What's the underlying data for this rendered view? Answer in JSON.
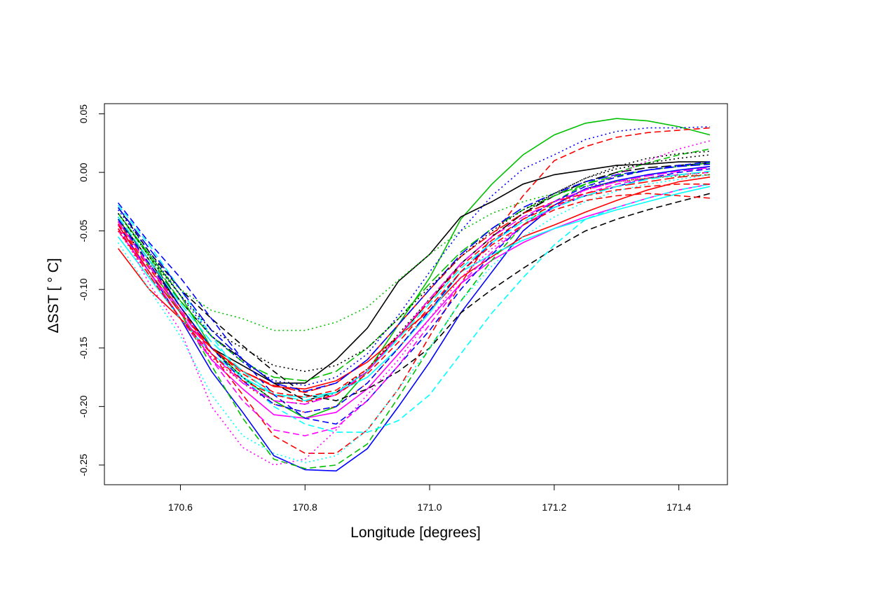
{
  "chart_data": {
    "type": "line",
    "xlabel": "Longitude [degrees]",
    "ylabel": "ΔSST [ ° C]",
    "xlim": [
      170.478,
      171.478
    ],
    "ylim": [
      -0.2668,
      0.0587
    ],
    "x_ticks": [
      170.6,
      170.8,
      171.0,
      171.2,
      171.4
    ],
    "x_tick_labels": [
      "170.6",
      "170.8",
      "171.0",
      "171.2",
      "171.4"
    ],
    "y_ticks": [
      0.05,
      0.0,
      -0.05,
      -0.1,
      -0.15,
      -0.2,
      -0.25
    ],
    "y_tick_labels": [
      "0.05",
      "0.00",
      "-0.05",
      "-0.10",
      "-0.15",
      "-0.20",
      "-0.25"
    ],
    "grid": false,
    "legend": "none",
    "x": [
      170.5,
      170.55,
      170.6,
      170.65,
      170.7,
      170.75,
      170.8,
      170.85,
      170.9,
      170.95,
      171.0,
      171.05,
      171.1,
      171.15,
      171.2,
      171.25,
      171.3,
      171.35,
      171.4,
      171.45
    ],
    "series": [
      {
        "color": "#00c000",
        "dash": "solid",
        "values": [
          -0.035,
          -0.07,
          -0.105,
          -0.15,
          -0.175,
          -0.195,
          -0.21,
          -0.2,
          -0.17,
          -0.13,
          -0.09,
          -0.04,
          -0.01,
          0.015,
          0.032,
          0.042,
          0.046,
          0.044,
          0.039,
          0.032
        ]
      },
      {
        "color": "#0000ff",
        "dash": "solid",
        "values": [
          -0.045,
          -0.085,
          -0.125,
          -0.17,
          -0.205,
          -0.242,
          -0.254,
          -0.255,
          -0.236,
          -0.2,
          -0.162,
          -0.12,
          -0.085,
          -0.05,
          -0.028,
          -0.014,
          -0.007,
          -0.002,
          0.002,
          0.005
        ]
      },
      {
        "color": "#000000",
        "dash": "solid",
        "values": [
          -0.04,
          -0.075,
          -0.115,
          -0.15,
          -0.165,
          -0.18,
          -0.18,
          -0.16,
          -0.133,
          -0.093,
          -0.07,
          -0.038,
          -0.025,
          -0.01,
          -0.002,
          0.002,
          0.006,
          0.007,
          0.009,
          0.009
        ]
      },
      {
        "color": "#ff0000",
        "dash": "solid",
        "values": [
          -0.065,
          -0.1,
          -0.125,
          -0.15,
          -0.17,
          -0.183,
          -0.185,
          -0.178,
          -0.162,
          -0.14,
          -0.118,
          -0.09,
          -0.072,
          -0.055,
          -0.045,
          -0.034,
          -0.024,
          -0.015,
          -0.008,
          -0.004
        ]
      },
      {
        "color": "#ff00ff",
        "dash": "solid",
        "values": [
          -0.05,
          -0.085,
          -0.12,
          -0.16,
          -0.185,
          -0.207,
          -0.21,
          -0.205,
          -0.185,
          -0.155,
          -0.125,
          -0.095,
          -0.075,
          -0.06,
          -0.048,
          -0.038,
          -0.03,
          -0.022,
          -0.015,
          -0.01
        ]
      },
      {
        "color": "#00ffff",
        "dash": "solid",
        "values": [
          -0.055,
          -0.09,
          -0.125,
          -0.155,
          -0.175,
          -0.19,
          -0.192,
          -0.188,
          -0.175,
          -0.15,
          -0.12,
          -0.085,
          -0.07,
          -0.058,
          -0.048,
          -0.04,
          -0.032,
          -0.025,
          -0.018,
          -0.012
        ]
      },
      {
        "color": "#000000",
        "dash": "dash",
        "values": [
          -0.03,
          -0.068,
          -0.1,
          -0.125,
          -0.148,
          -0.17,
          -0.19,
          -0.195,
          -0.185,
          -0.17,
          -0.15,
          -0.12,
          -0.1,
          -0.082,
          -0.065,
          -0.05,
          -0.04,
          -0.032,
          -0.025,
          -0.018
        ]
      },
      {
        "color": "#ff0000",
        "dash": "dash",
        "values": [
          -0.042,
          -0.08,
          -0.115,
          -0.155,
          -0.19,
          -0.225,
          -0.24,
          -0.24,
          -0.22,
          -0.185,
          -0.14,
          -0.095,
          -0.055,
          -0.02,
          0.01,
          0.022,
          0.03,
          0.034,
          0.036,
          0.038
        ]
      },
      {
        "color": "#00c000",
        "dash": "dash",
        "values": [
          -0.04,
          -0.08,
          -0.12,
          -0.165,
          -0.21,
          -0.245,
          -0.253,
          -0.25,
          -0.232,
          -0.192,
          -0.15,
          -0.11,
          -0.075,
          -0.045,
          -0.025,
          -0.01,
          0.0,
          0.008,
          0.015,
          0.02
        ]
      },
      {
        "color": "#0000ff",
        "dash": "dash",
        "values": [
          -0.026,
          -0.06,
          -0.09,
          -0.125,
          -0.16,
          -0.19,
          -0.21,
          -0.215,
          -0.195,
          -0.165,
          -0.135,
          -0.1,
          -0.07,
          -0.045,
          -0.03,
          -0.02,
          -0.012,
          -0.005,
          0.0,
          0.003
        ]
      },
      {
        "color": "#00ffff",
        "dash": "dash",
        "values": [
          -0.028,
          -0.062,
          -0.1,
          -0.14,
          -0.175,
          -0.2,
          -0.215,
          -0.222,
          -0.222,
          -0.212,
          -0.19,
          -0.155,
          -0.12,
          -0.09,
          -0.062,
          -0.04,
          -0.03,
          -0.022,
          -0.015,
          -0.01
        ]
      },
      {
        "color": "#ff00ff",
        "dash": "dash",
        "values": [
          -0.048,
          -0.085,
          -0.125,
          -0.16,
          -0.195,
          -0.22,
          -0.225,
          -0.218,
          -0.195,
          -0.165,
          -0.13,
          -0.095,
          -0.068,
          -0.045,
          -0.03,
          -0.018,
          -0.01,
          -0.005,
          -0.002,
          0.0
        ]
      },
      {
        "color": "#000000",
        "dash": "dash2",
        "values": [
          -0.038,
          -0.075,
          -0.11,
          -0.14,
          -0.16,
          -0.18,
          -0.195,
          -0.188,
          -0.17,
          -0.14,
          -0.11,
          -0.078,
          -0.055,
          -0.035,
          -0.02,
          -0.008,
          0.0,
          0.004,
          0.006,
          0.008
        ]
      },
      {
        "color": "#ff0000",
        "dash": "dash2",
        "values": [
          -0.045,
          -0.085,
          -0.12,
          -0.15,
          -0.17,
          -0.182,
          -0.188,
          -0.18,
          -0.16,
          -0.13,
          -0.1,
          -0.072,
          -0.052,
          -0.035,
          -0.025,
          -0.018,
          -0.012,
          -0.008,
          -0.004,
          -0.002
        ]
      },
      {
        "color": "#00c000",
        "dash": "dash2",
        "values": [
          -0.035,
          -0.072,
          -0.11,
          -0.14,
          -0.162,
          -0.175,
          -0.178,
          -0.17,
          -0.15,
          -0.125,
          -0.095,
          -0.068,
          -0.048,
          -0.032,
          -0.02,
          -0.01,
          -0.003,
          0.002,
          0.005,
          0.008
        ]
      },
      {
        "color": "#0000ff",
        "dash": "dash2",
        "values": [
          -0.03,
          -0.065,
          -0.1,
          -0.135,
          -0.16,
          -0.18,
          -0.187,
          -0.18,
          -0.16,
          -0.13,
          -0.1,
          -0.07,
          -0.048,
          -0.03,
          -0.018,
          -0.008,
          -0.002,
          0.002,
          0.005,
          0.007
        ]
      },
      {
        "color": "#000000",
        "dash": "dot",
        "values": [
          -0.042,
          -0.078,
          -0.115,
          -0.15,
          -0.175,
          -0.195,
          -0.198,
          -0.188,
          -0.168,
          -0.138,
          -0.108,
          -0.078,
          -0.055,
          -0.035,
          -0.018,
          -0.005,
          0.005,
          0.012,
          0.016,
          0.018
        ]
      },
      {
        "color": "#ff0000",
        "dash": "dot",
        "values": [
          -0.05,
          -0.088,
          -0.125,
          -0.158,
          -0.18,
          -0.198,
          -0.205,
          -0.2,
          -0.18,
          -0.15,
          -0.118,
          -0.085,
          -0.06,
          -0.04,
          -0.025,
          -0.015,
          -0.008,
          -0.005,
          -0.002,
          0.0
        ]
      },
      {
        "color": "#00c000",
        "dash": "dot",
        "values": [
          -0.04,
          -0.075,
          -0.1,
          -0.118,
          -0.125,
          -0.135,
          -0.135,
          -0.128,
          -0.115,
          -0.092,
          -0.07,
          -0.05,
          -0.035,
          -0.025,
          -0.018,
          -0.012,
          -0.008,
          -0.005,
          -0.003,
          -0.002
        ]
      },
      {
        "color": "#0000ff",
        "dash": "dot",
        "values": [
          -0.032,
          -0.068,
          -0.105,
          -0.14,
          -0.162,
          -0.178,
          -0.182,
          -0.175,
          -0.155,
          -0.122,
          -0.085,
          -0.05,
          -0.02,
          0.003,
          0.015,
          0.028,
          0.035,
          0.038,
          0.038,
          0.039
        ]
      },
      {
        "color": "#ff00ff",
        "dash": "dot",
        "values": [
          -0.045,
          -0.095,
          -0.135,
          -0.2,
          -0.235,
          -0.25,
          -0.245,
          -0.22,
          -0.19,
          -0.16,
          -0.125,
          -0.09,
          -0.065,
          -0.045,
          -0.03,
          -0.015,
          -0.002,
          0.01,
          0.02,
          0.027
        ]
      },
      {
        "color": "#00ffff",
        "dash": "dot",
        "values": [
          -0.06,
          -0.1,
          -0.14,
          -0.19,
          -0.225,
          -0.24,
          -0.248,
          -0.242,
          -0.22,
          -0.185,
          -0.15,
          -0.11,
          -0.08,
          -0.055,
          -0.038,
          -0.025,
          -0.016,
          -0.01,
          -0.006,
          -0.002
        ]
      },
      {
        "color": "#000000",
        "dash": "dot",
        "values": [
          -0.035,
          -0.072,
          -0.105,
          -0.135,
          -0.15,
          -0.165,
          -0.17,
          -0.165,
          -0.15,
          -0.125,
          -0.098,
          -0.072,
          -0.05,
          -0.032,
          -0.018,
          -0.005,
          0.003,
          0.008,
          0.012,
          0.015
        ]
      },
      {
        "color": "#0000ff",
        "dash": "dash",
        "values": [
          -0.04,
          -0.078,
          -0.115,
          -0.15,
          -0.178,
          -0.198,
          -0.205,
          -0.2,
          -0.18,
          -0.15,
          -0.118,
          -0.085,
          -0.06,
          -0.04,
          -0.025,
          -0.012,
          -0.004,
          0.002,
          0.006,
          0.009
        ]
      },
      {
        "color": "#ff0000",
        "dash": "dash",
        "values": [
          -0.044,
          -0.082,
          -0.118,
          -0.15,
          -0.172,
          -0.188,
          -0.192,
          -0.186,
          -0.168,
          -0.14,
          -0.11,
          -0.08,
          -0.058,
          -0.04,
          -0.028,
          -0.02,
          -0.015,
          -0.012,
          -0.01,
          -0.01
        ]
      },
      {
        "color": "#00ffff",
        "dash": "dash2",
        "values": [
          -0.038,
          -0.075,
          -0.112,
          -0.145,
          -0.17,
          -0.19,
          -0.195,
          -0.188,
          -0.17,
          -0.142,
          -0.112,
          -0.082,
          -0.06,
          -0.042,
          -0.03,
          -0.02,
          -0.012,
          -0.006,
          -0.002,
          0.001
        ]
      },
      {
        "color": "#ff00ff",
        "dash": "dash2",
        "values": [
          -0.042,
          -0.08,
          -0.118,
          -0.155,
          -0.18,
          -0.195,
          -0.198,
          -0.19,
          -0.17,
          -0.14,
          -0.108,
          -0.078,
          -0.055,
          -0.038,
          -0.025,
          -0.015,
          -0.008,
          -0.003,
          0.001,
          0.004
        ]
      },
      {
        "color": "#ff0000",
        "dash": "dash",
        "values": [
          -0.048,
          -0.088,
          -0.125,
          -0.155,
          -0.178,
          -0.19,
          -0.196,
          -0.19,
          -0.172,
          -0.145,
          -0.115,
          -0.085,
          -0.062,
          -0.045,
          -0.032,
          -0.024,
          -0.02,
          -0.018,
          -0.02,
          -0.022
        ]
      }
    ]
  }
}
